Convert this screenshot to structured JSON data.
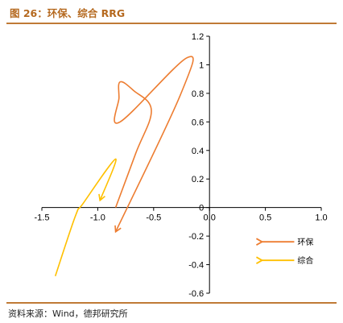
{
  "title": "图 26：环保、综合 RRG",
  "source": "资料来源：Wind，德邦研究所",
  "chart_data": {
    "type": "line",
    "title": "",
    "xlabel": "",
    "ylabel": "",
    "xlim": [
      -1.5,
      1.0
    ],
    "ylim": [
      -0.6,
      1.2
    ],
    "x_ticks": [
      -1.5,
      -1.0,
      -0.5,
      0.0,
      0.5,
      1.0
    ],
    "x_tick_labels": [
      "-1.5",
      "-1.0",
      "-0.5",
      "0.0",
      "0.5",
      "1.0"
    ],
    "y_ticks": [
      -0.6,
      -0.4,
      -0.2,
      0,
      0.2,
      0.4,
      0.6,
      0.8,
      1,
      1.2
    ],
    "y_tick_labels": [
      "-0.6",
      "-0.4",
      "-0.2",
      "0",
      "0.2",
      "0.4",
      "0.6",
      "0.8",
      "1",
      "1.2"
    ],
    "legend_position": "bottom-right",
    "series": [
      {
        "name": "环保",
        "color": "#ed7d31",
        "points": [
          {
            "x": -0.84,
            "y": 0.0
          },
          {
            "x": -0.66,
            "y": 0.38
          },
          {
            "x": -0.52,
            "y": 0.68
          },
          {
            "x": -0.68,
            "y": 0.82
          },
          {
            "x": -0.8,
            "y": 0.88
          },
          {
            "x": -0.81,
            "y": 0.77
          },
          {
            "x": -0.8,
            "y": 0.6
          },
          {
            "x": -0.2,
            "y": 1.05
          },
          {
            "x": -0.26,
            "y": 0.79
          },
          {
            "x": -0.84,
            "y": -0.17
          }
        ]
      },
      {
        "name": "综合",
        "color": "#ffc000",
        "points": [
          {
            "x": -1.38,
            "y": -0.48
          },
          {
            "x": -1.2,
            "y": -0.06
          },
          {
            "x": -1.13,
            "y": 0.03
          },
          {
            "x": -0.84,
            "y": 0.34
          },
          {
            "x": -0.98,
            "y": 0.05
          }
        ]
      }
    ]
  }
}
